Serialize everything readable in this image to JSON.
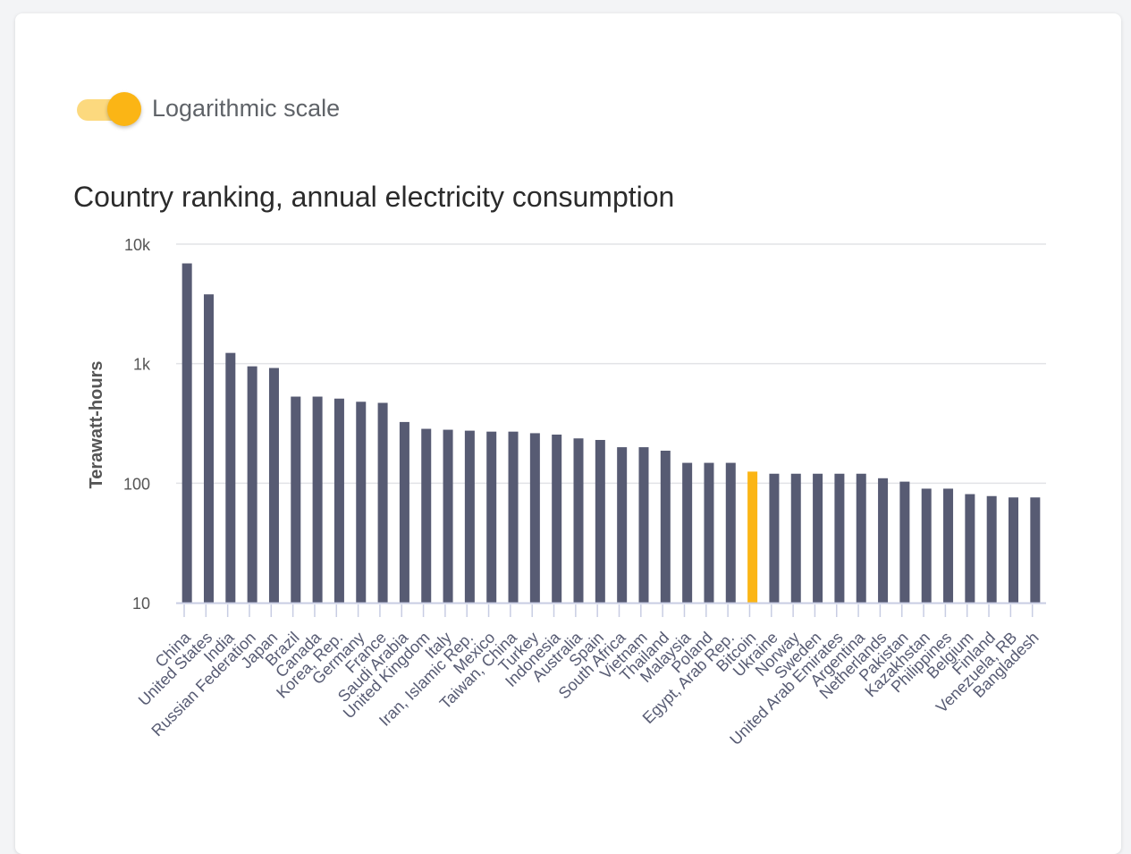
{
  "toggle": {
    "label": "Logarithmic scale",
    "checked": true,
    "track_color": "#fcd97e",
    "knob_color": "#fbb515"
  },
  "chart_data": {
    "type": "bar",
    "title": "Country ranking, annual electricity consumption",
    "xlabel": "",
    "ylabel": "Terawatt-hours",
    "yscale": "log",
    "ylim": [
      10,
      10000
    ],
    "yticks": [
      {
        "value": 10,
        "label": "10"
      },
      {
        "value": 100,
        "label": "100"
      },
      {
        "value": 1000,
        "label": "1k"
      },
      {
        "value": 10000,
        "label": "10k"
      }
    ],
    "grid": true,
    "bar_color": "#575b73",
    "highlight_color": "#fbb515",
    "highlight_category": "Bitcoin",
    "categories": [
      "China",
      "United States",
      "India",
      "Russian Federation",
      "Japan",
      "Brazil",
      "Canada",
      "Korea, Rep.",
      "Germany",
      "France",
      "Saudi Arabia",
      "United Kingdom",
      "Italy",
      "Iran, Islamic Rep.",
      "Mexico",
      "Taiwan, China",
      "Turkey",
      "Indonesia",
      "Australia",
      "Spain",
      "South Africa",
      "Vietnam",
      "Thailand",
      "Malaysia",
      "Poland",
      "Egypt, Arab Rep.",
      "Bitcoin",
      "Ukraine",
      "Norway",
      "Sweden",
      "United Arab Emirates",
      "Argentina",
      "Netherlands",
      "Pakistan",
      "Kazakhstan",
      "Philippines",
      "Belgium",
      "Finland",
      "Venezuela, RB",
      "Bangladesh"
    ],
    "values": [
      6900,
      3800,
      1230,
      950,
      920,
      530,
      530,
      510,
      480,
      470,
      325,
      285,
      280,
      275,
      270,
      270,
      262,
      255,
      237,
      230,
      200,
      200,
      187,
      148,
      148,
      148,
      125,
      120,
      120,
      120,
      120,
      120,
      110,
      103,
      90,
      90,
      81,
      78,
      76,
      76
    ]
  }
}
